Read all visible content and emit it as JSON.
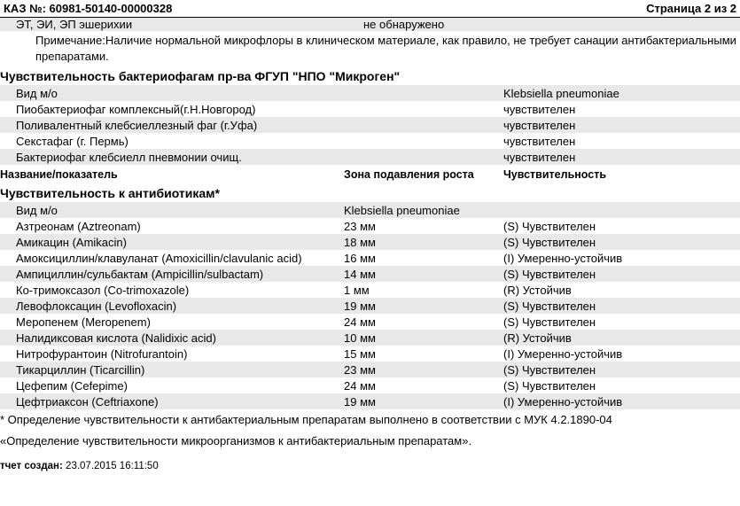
{
  "header": {
    "order_label": "КАЗ №:",
    "order_number": "60981-50140-00000328",
    "page_label": "Страница 2 из 2"
  },
  "top_block": {
    "row1_name": "ЭТ, ЭИ, ЭП  эшерихии",
    "row1_value": "не обнаружено",
    "note": "Примечание:Наличие нормальной микрофлоры в клиническом материале, как правило,  не требует санации антибактериальными препаратами."
  },
  "phage_section": {
    "title": "Чувствительность бактериофагам пр-ва ФГУП \"НПО \"Микроген\"",
    "org_label": "Вид м/о",
    "organism": "Klebsiella pneumoniae",
    "rows": [
      {
        "name": "Пиобактериофаг комплексный(г.Н.Новгород)",
        "result": "чувствителен"
      },
      {
        "name": "Поливалентный клебсиеллезный фаг (г.Уфа)",
        "result": "чувствителен"
      },
      {
        "name": "Секстафаг (г. Пермь)",
        "result": "чувствителен"
      },
      {
        "name": "Бактериофаг клебсиелл пневмонии очищ.",
        "result": "чувствителен"
      }
    ]
  },
  "column_headers": {
    "name": "Название/показатель",
    "zone": "Зона подавления роста",
    "sens": "Чувствительность"
  },
  "ab_section": {
    "title": "Чувствительность к антибиотикам*",
    "org_label": "Вид м/о",
    "organism": "Klebsiella pneumoniae",
    "rows": [
      {
        "name": "Азтреонам (Aztreonam)",
        "zone": "23 мм",
        "sens": "(S) Чувствителен"
      },
      {
        "name": "Амикацин (Amikacin)",
        "zone": "18 мм",
        "sens": "(S) Чувствителен"
      },
      {
        "name": "Амоксициллин/клавуланат (Amoxicillin/clavulanic acid)",
        "zone": "16 мм",
        "sens": "(I) Умеренно-устойчив"
      },
      {
        "name": "Ампициллин/сульбактам (Ampicillin/sulbactam)",
        "zone": "14 мм",
        "sens": "(S) Чувствителен"
      },
      {
        "name": "Ко-тримоксазол (Co-trimoxazole)",
        "zone": "1 мм",
        "sens": "(R) Устойчив"
      },
      {
        "name": "Левофлоксацин (Levofloxacin)",
        "zone": "19 мм",
        "sens": "(S) Чувствителен"
      },
      {
        "name": "Меропенем  (Meropenem)",
        "zone": "24 мм",
        "sens": "(S) Чувствителен"
      },
      {
        "name": "Налидиксовая кислота (Nalidixic acid)",
        "zone": "10 мм",
        "sens": "(R) Устойчив"
      },
      {
        "name": "Нитрофурантоин (Nitrofurantoin)",
        "zone": "15 мм",
        "sens": "(I) Умеренно-устойчив"
      },
      {
        "name": "Тикарциллин (Ticarcillin)",
        "zone": "23 мм",
        "sens": "(S) Чувствителен"
      },
      {
        "name": "Цефепим (Cefepime)",
        "zone": "24 мм",
        "sens": "(S) Чувствителен"
      },
      {
        "name": "Цефтриаксон (Ceftriaxone)",
        "zone": "19 мм",
        "sens": "(I) Умеренно-устойчив"
      }
    ]
  },
  "footnotes": {
    "line1": "* Определение чувствительности к антибактериальным препаратам выполнено  в соответствии с МУК 4.2.1890-04",
    "line2": "«Определение чувствительности микроорганизмов к антибактериальным препаратам»."
  },
  "report": {
    "label": "тчет создан:",
    "timestamp": "23.07.2015 16:11:50"
  }
}
